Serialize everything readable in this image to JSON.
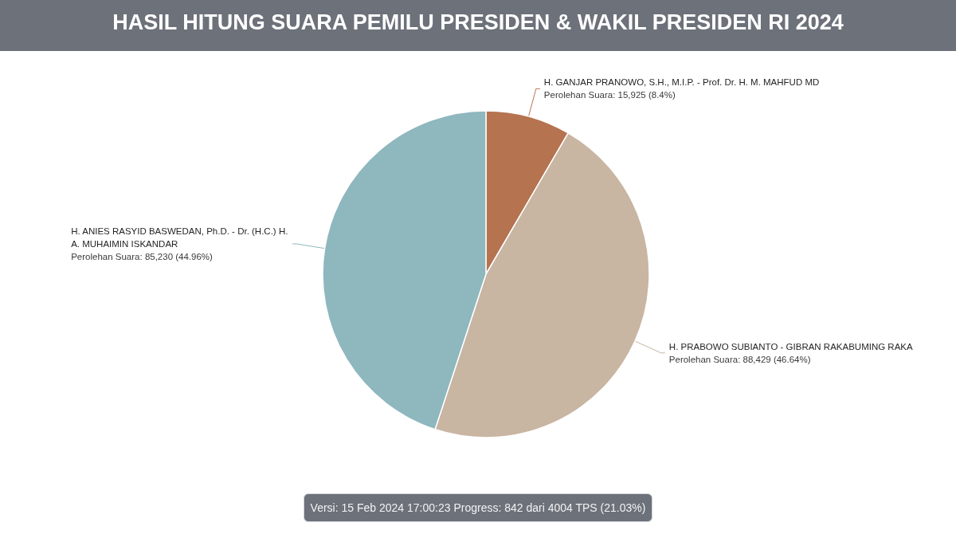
{
  "chart_data": {
    "type": "pie",
    "title": "HASIL HITUNG SUARA PEMILU PRESIDEN & WAKIL PRESIDEN RI 2024",
    "categories": [
      "H. GANJAR PRANOWO, S.H., M.I.P. - Prof. Dr. H. M. MAHFUD MD",
      "H. PRABOWO SUBIANTO - GIBRAN RAKABUMING RAKA",
      "H. ANIES RASYID BASWEDAN, Ph.D. - Dr. (H.C.) H. A. MUHAIMIN ISKANDAR"
    ],
    "values": [
      15925,
      88429,
      85230
    ],
    "colors": [
      "#b5734f",
      "#c8b5a2",
      "#8eb7be"
    ],
    "value_labels": [
      "Perolehan Suara: 15,925 (8.4%)",
      "Perolehan Suara: 88,429 (46.64%)",
      "Perolehan Suara: 85,230 (44.96%)"
    ],
    "annotations": [
      "Versi: 15 Feb 2024 17:00:23 Progress: 842 dari 4004 TPS (21.03%)"
    ]
  }
}
